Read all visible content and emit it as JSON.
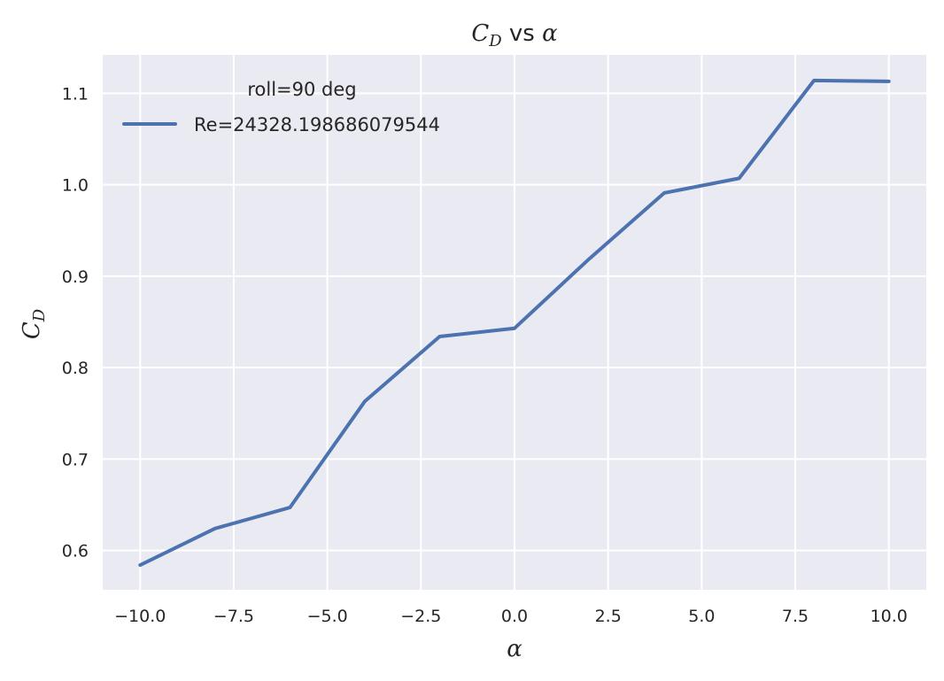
{
  "chart_data": {
    "type": "line",
    "title": "C_D vs α",
    "title_parts": {
      "var": "C",
      "sub": "D",
      "rest": " vs ",
      "greek": "α"
    },
    "xlabel": "α",
    "ylabel": "C_D",
    "ylabel_parts": {
      "var": "C",
      "sub": "D"
    },
    "xlim": [
      -11.0,
      11.0
    ],
    "ylim": [
      0.557,
      1.142
    ],
    "xticks": [
      -10.0,
      -7.5,
      -5.0,
      -2.5,
      0.0,
      2.5,
      5.0,
      7.5,
      10.0
    ],
    "xtick_labels": [
      "−10.0",
      "−7.5",
      "−5.0",
      "−2.5",
      "0.0",
      "2.5",
      "5.0",
      "7.5",
      "10.0"
    ],
    "yticks": [
      0.6,
      0.7,
      0.8,
      0.9,
      1.0,
      1.1
    ],
    "ytick_labels": [
      "0.6",
      "0.7",
      "0.8",
      "0.9",
      "1.0",
      "1.1"
    ],
    "grid": true,
    "legend": {
      "title": "roll=90 deg",
      "placement": "top-left"
    },
    "series": [
      {
        "name": "Re=24328.198686079544",
        "color": "#4c72b0",
        "x": [
          -10,
          -8,
          -6,
          -4,
          -2,
          0,
          2,
          4,
          6,
          8,
          10
        ],
        "y": [
          0.584,
          0.624,
          0.647,
          0.763,
          0.834,
          0.843,
          0.919,
          0.991,
          1.007,
          1.114,
          1.113
        ]
      }
    ],
    "style": {
      "plot_bg": "#eaeaf2",
      "grid_color": "#ffffff",
      "text_color": "#262626"
    }
  }
}
